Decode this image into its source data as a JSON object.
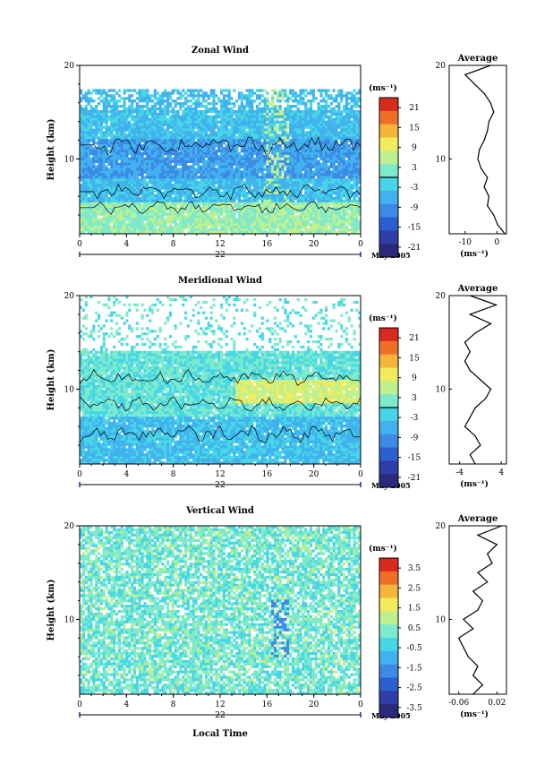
{
  "xlabel": "Local Time",
  "date_label": "May 2005",
  "chart_data": [
    {
      "type": "heatmap",
      "title": "Zonal Wind",
      "ylabel": "Height (km)",
      "ylim": [
        2,
        20
      ],
      "y_ticks": [
        20,
        10
      ],
      "x_ticks": [
        "0",
        "4",
        "8",
        "12",
        "16",
        "20",
        "0"
      ],
      "day_label": "22",
      "colorbar": {
        "unit": "(ms⁻¹)",
        "ticks": [
          "21",
          "15",
          "9",
          "3",
          "-3",
          "-9",
          "-15",
          "-21"
        ],
        "range": [
          -24,
          24
        ]
      },
      "profile": {
        "title": "Average",
        "xlabel": "(ms⁻¹)",
        "x_ticks": [
          "-10",
          "0"
        ],
        "xlim": [
          -15,
          3
        ],
        "points": [
          [
            2.5,
            2
          ],
          [
            0.2,
            3
          ],
          [
            -1,
            4
          ],
          [
            -3,
            5
          ],
          [
            -2.5,
            6
          ],
          [
            -4,
            7
          ],
          [
            -3,
            8
          ],
          [
            -5,
            9
          ],
          [
            -6,
            10
          ],
          [
            -5.5,
            11
          ],
          [
            -4,
            12
          ],
          [
            -3,
            13
          ],
          [
            -2.5,
            14
          ],
          [
            -1,
            15
          ],
          [
            -2,
            16
          ],
          [
            -4,
            17
          ],
          [
            -7,
            18
          ],
          [
            -10,
            19
          ],
          [
            -2,
            20
          ]
        ]
      }
    },
    {
      "type": "heatmap",
      "title": "Meridional Wind",
      "ylabel": "Height (km)",
      "ylim": [
        2,
        20
      ],
      "y_ticks": [
        20,
        10
      ],
      "x_ticks": [
        "0",
        "4",
        "8",
        "12",
        "16",
        "20",
        "0"
      ],
      "day_label": "22",
      "colorbar": {
        "unit": "(ms⁻¹)",
        "ticks": [
          "21",
          "15",
          "9",
          "3",
          "-3",
          "-9",
          "-15",
          "-21"
        ],
        "range": [
          -24,
          24
        ]
      },
      "profile": {
        "title": "Average",
        "xlabel": "(ms⁻¹)",
        "x_ticks": [
          "-4",
          "4"
        ],
        "xlim": [
          -6,
          5
        ],
        "points": [
          [
            -1,
            2
          ],
          [
            -2,
            3
          ],
          [
            0,
            4
          ],
          [
            -1,
            5
          ],
          [
            -3,
            6
          ],
          [
            -2,
            7
          ],
          [
            -1,
            8
          ],
          [
            1,
            9
          ],
          [
            2,
            10
          ],
          [
            0,
            11
          ],
          [
            -2,
            12
          ],
          [
            -3,
            13
          ],
          [
            -2,
            14
          ],
          [
            -3,
            15
          ],
          [
            -1,
            16
          ],
          [
            2,
            17
          ],
          [
            -2,
            18
          ],
          [
            3,
            19
          ],
          [
            -2,
            20
          ]
        ]
      }
    },
    {
      "type": "heatmap",
      "title": "Vertical Wind",
      "ylabel": "Height (km)",
      "ylim": [
        2,
        20
      ],
      "y_ticks": [
        20,
        10
      ],
      "x_ticks": [
        "0",
        "4",
        "8",
        "12",
        "16",
        "20",
        "0"
      ],
      "day_label": "22",
      "colorbar": {
        "unit": "(ms⁻¹)",
        "ticks": [
          "3.5",
          "2.5",
          "1.5",
          "0.5",
          "-0.5",
          "-1.5",
          "-2.5",
          "-3.5"
        ],
        "range": [
          -4,
          4
        ]
      },
      "profile": {
        "title": "Average",
        "xlabel": "(ms⁻¹)",
        "x_ticks": [
          "-0.06",
          "0.02"
        ],
        "xlim": [
          -0.08,
          0.04
        ],
        "points": [
          [
            -0.03,
            2
          ],
          [
            -0.01,
            3
          ],
          [
            -0.03,
            4
          ],
          [
            -0.02,
            5
          ],
          [
            -0.04,
            6
          ],
          [
            -0.05,
            7
          ],
          [
            -0.06,
            8
          ],
          [
            -0.03,
            9
          ],
          [
            -0.05,
            10
          ],
          [
            -0.02,
            11
          ],
          [
            -0.01,
            12
          ],
          [
            -0.03,
            13
          ],
          [
            0.0,
            14
          ],
          [
            -0.02,
            15
          ],
          [
            0.01,
            16
          ],
          [
            0.0,
            17
          ],
          [
            0.02,
            18
          ],
          [
            -0.02,
            19
          ],
          [
            0.03,
            20
          ]
        ]
      }
    }
  ]
}
